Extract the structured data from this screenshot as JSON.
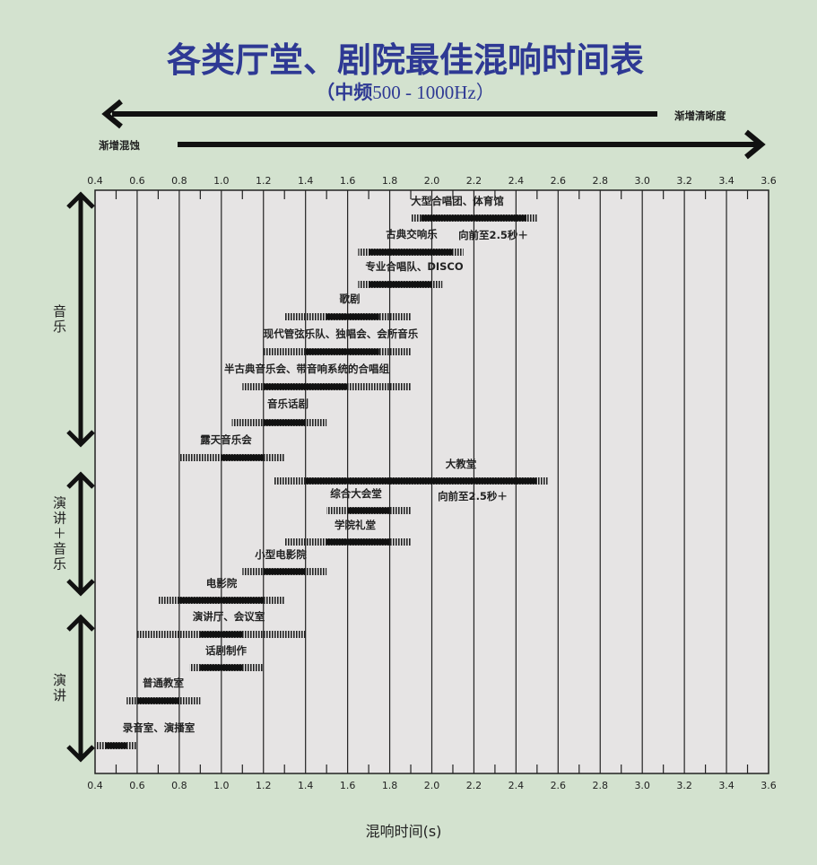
{
  "chart_data": {
    "type": "bar",
    "subtype": "horizontal-range",
    "title": "各类厅堂、剧院最佳混响时间表",
    "subtitle_bold": "（中频",
    "subtitle_rest": "500 - 1000Hz）",
    "arrow_left_label": "渐增清晰度",
    "arrow_right_label": "渐增混蚀",
    "xlabel": "混响时间(s)",
    "xlim": [
      0.4,
      3.6
    ],
    "xticks": [
      "0.4",
      "0.6",
      "0.8",
      "1.0",
      "1.2",
      "1.4",
      "1.6",
      "1.8",
      "2.0",
      "2.2",
      "2.4",
      "2.6",
      "2.8",
      "3.0",
      "3.2",
      "3.4",
      "3.6"
    ],
    "grid": true,
    "groups": [
      {
        "label": "音乐"
      },
      {
        "label": "演讲＋音乐"
      },
      {
        "label": "演讲"
      }
    ],
    "items": [
      {
        "name": "大型合唱团、体育馆",
        "range": [
          1.9,
          2.5
        ],
        "optimal": [
          1.95,
          2.45
        ],
        "group": "音乐"
      },
      {
        "name": "古典交响乐",
        "range": [
          1.65,
          2.15
        ],
        "optimal": [
          1.7,
          2.1
        ],
        "group": "音乐",
        "note": "向前至2.5秒＋"
      },
      {
        "name": "专业合唱队、DISCO",
        "range": [
          1.65,
          2.05
        ],
        "optimal": [
          1.7,
          2.0
        ],
        "group": "音乐"
      },
      {
        "name": "歌剧",
        "range": [
          1.3,
          1.9
        ],
        "optimal": [
          1.5,
          1.75
        ],
        "group": "音乐"
      },
      {
        "name": "现代管弦乐队、独唱会、会所音乐",
        "range": [
          1.2,
          1.9
        ],
        "optimal": [
          1.4,
          1.75
        ],
        "group": "音乐"
      },
      {
        "name": "半古典音乐会、带音响系统的合唱组",
        "range": [
          1.1,
          1.9
        ],
        "optimal": [
          1.2,
          1.6
        ],
        "group": "音乐"
      },
      {
        "name": "音乐话剧",
        "range": [
          1.05,
          1.5
        ],
        "optimal": [
          1.2,
          1.4
        ],
        "group": "音乐"
      },
      {
        "name": "露天音乐会",
        "range": [
          0.8,
          1.3
        ],
        "optimal": [
          1.0,
          1.2
        ],
        "group": "音乐"
      },
      {
        "name": "大教堂",
        "range": [
          1.25,
          2.55
        ],
        "optimal": [
          1.4,
          2.5
        ],
        "group": "演讲＋音乐",
        "note": "向前至2.5秒＋"
      },
      {
        "name": "综合大会堂",
        "range": [
          1.5,
          1.9
        ],
        "optimal": [
          1.6,
          1.8
        ],
        "group": "演讲＋音乐"
      },
      {
        "name": "学院礼堂",
        "range": [
          1.3,
          1.9
        ],
        "optimal": [
          1.5,
          1.8
        ],
        "group": "演讲＋音乐"
      },
      {
        "name": "小型电影院",
        "range": [
          1.1,
          1.5
        ],
        "optimal": [
          1.2,
          1.4
        ],
        "group": "演讲＋音乐"
      },
      {
        "name": "电影院",
        "range": [
          0.7,
          1.3
        ],
        "optimal": [
          0.8,
          1.2
        ],
        "group": "演讲"
      },
      {
        "name": "演讲厅、会议室",
        "range": [
          0.6,
          1.4
        ],
        "optimal": [
          0.9,
          1.1
        ],
        "group": "演讲"
      },
      {
        "name": "话剧制作",
        "range": [
          0.85,
          1.2
        ],
        "optimal": [
          0.9,
          1.1
        ],
        "group": "演讲"
      },
      {
        "name": "普通教室",
        "range": [
          0.55,
          0.9
        ],
        "optimal": [
          0.6,
          0.8
        ],
        "group": "演讲"
      },
      {
        "name": "录音室、演播室",
        "range": [
          0.4,
          0.6
        ],
        "optimal": [
          0.45,
          0.55
        ],
        "group": "演讲"
      }
    ],
    "colors": {
      "title": "#2e3994",
      "background": "#d3e2cf",
      "plot": "#e6e4e4",
      "bar": "#111111"
    }
  }
}
